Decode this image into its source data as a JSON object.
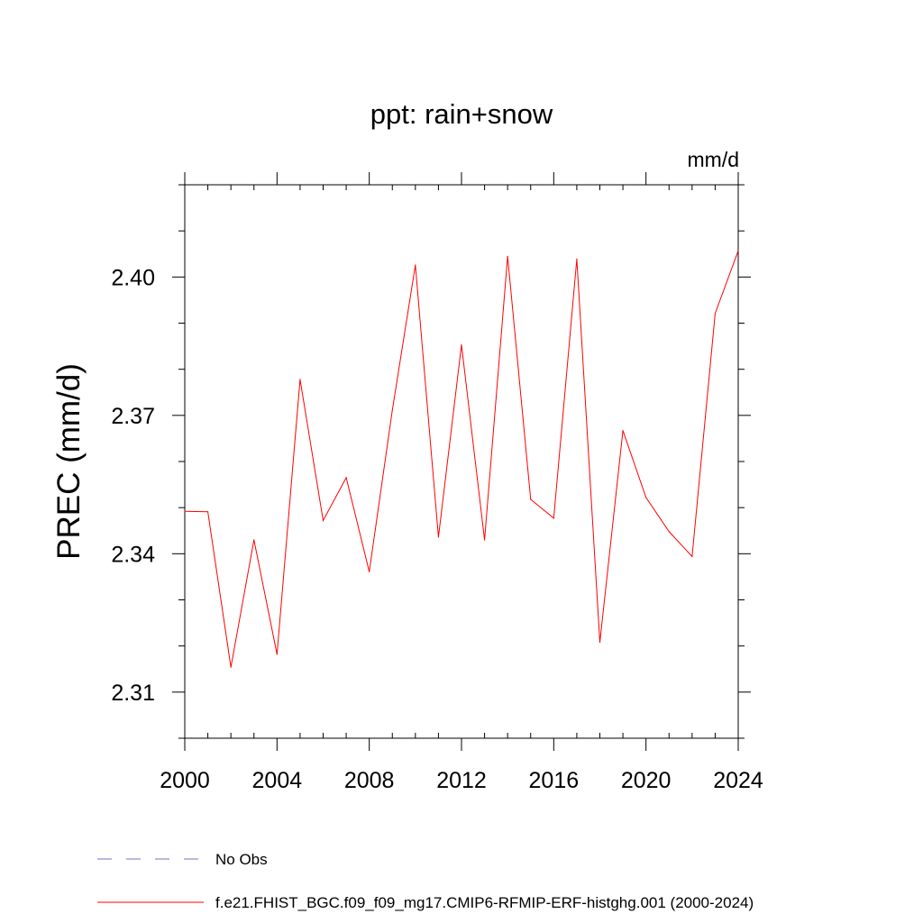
{
  "chart_data": {
    "type": "line",
    "title": "ppt: rain+snow",
    "units": "mm/d",
    "xlabel": "",
    "ylabel": "PREC  (mm/d)",
    "xlim": [
      2000,
      2024
    ],
    "ylim": [
      2.3,
      2.42
    ],
    "x_ticks": [
      2000,
      2004,
      2008,
      2012,
      2016,
      2020,
      2024
    ],
    "x_tick_labels": [
      "2000",
      "2004",
      "2008",
      "2012",
      "2016",
      "2020",
      "2024"
    ],
    "y_ticks": [
      2.31,
      2.34,
      2.37,
      2.4
    ],
    "y_tick_labels": [
      "2.31",
      "2.34",
      "2.37",
      "2.40"
    ],
    "y_minor_step": 0.01,
    "x_minor_step": 1,
    "grid": false,
    "legend_position": "bottom-left",
    "series": [
      {
        "name": "f.e21.FHIST_BGC.f09_f09_mg17.CMIP6-RFMIP-ERF-histghg.001 (2000-2024)",
        "color": "#ff0000",
        "style": "solid",
        "x": [
          2000,
          2001,
          2002,
          2003,
          2004,
          2005,
          2006,
          2007,
          2008,
          2009,
          2010,
          2011,
          2012,
          2013,
          2014,
          2015,
          2016,
          2017,
          2018,
          2019,
          2020,
          2021,
          2022,
          2023,
          2024
        ],
        "values": [
          2.3492,
          2.3491,
          2.3154,
          2.343,
          2.3182,
          2.3778,
          2.3472,
          2.3565,
          2.3361,
          2.3711,
          2.4026,
          2.3436,
          2.3853,
          2.343,
          2.4045,
          2.3518,
          2.3477,
          2.4039,
          2.3208,
          2.3667,
          2.3522,
          2.3448,
          2.3394,
          2.3921,
          2.4057
        ]
      }
    ],
    "legend": [
      {
        "label": "No Obs",
        "color": "#7b6fc0",
        "style": "dashed"
      },
      {
        "label": "f.e21.FHIST_BGC.f09_f09_mg17.CMIP6-RFMIP-ERF-histghg.001 (2000-2024)",
        "color": "#ff0000",
        "style": "solid"
      }
    ]
  }
}
